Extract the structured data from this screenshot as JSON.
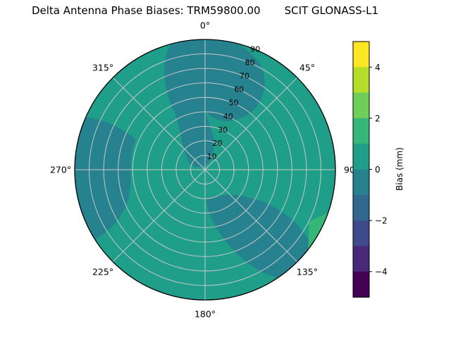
{
  "title": {
    "left": "Delta Antenna Phase Biases: TRM59800.00",
    "right": "SCIT GLONASS-L1"
  },
  "polar": {
    "azimuth_labels": [
      {
        "label": "0°",
        "angle": 0
      },
      {
        "label": "45°",
        "angle": 45
      },
      {
        "label": "90",
        "angle": 90
      },
      {
        "label": "135°",
        "angle": 135
      },
      {
        "label": "180°",
        "angle": 180
      },
      {
        "label": "225°",
        "angle": 225
      },
      {
        "label": "270°",
        "angle": 270
      },
      {
        "label": "315°",
        "angle": 315
      }
    ],
    "radial_labels": [
      "10",
      "20",
      "30",
      "40",
      "50",
      "60",
      "70",
      "80",
      "90"
    ],
    "radial_label_angle_deg": 22,
    "grid_color": "#c8c8c8"
  },
  "colors": {
    "base": "#1f9e89",
    "low": "#26828e",
    "high": "#35b779",
    "outline": "#000000"
  },
  "colorbar": {
    "title": "Bias (mm)",
    "vmin": -5,
    "vmax": 5,
    "ticks": [
      {
        "label": "4",
        "value": 4
      },
      {
        "label": "2",
        "value": 2
      },
      {
        "label": "0",
        "value": 0
      },
      {
        "label": "−2",
        "value": -2
      },
      {
        "label": "−4",
        "value": -4
      }
    ],
    "bands_top_to_bottom": [
      "#fde725",
      "#b5de2b",
      "#6ece58",
      "#35b779",
      "#1f9e89",
      "#26828e",
      "#31688e",
      "#3e4a89",
      "#482878",
      "#440154"
    ]
  },
  "chart_data": {
    "type": "heatmap",
    "projection": "polar",
    "title": "Delta Antenna Phase Biases: TRM59800.00     SCIT GLONASS-L1",
    "azimuth_ticks_deg": [
      0,
      45,
      90,
      135,
      180,
      225,
      270,
      315
    ],
    "radial_ticks": [
      10,
      20,
      30,
      40,
      50,
      60,
      70,
      80,
      90
    ],
    "radial_axis": "zenith angle in degrees, 0 at center to 90 at outer edge",
    "colorbar_label": "Bias (mm)",
    "colorbar_range": [
      -5,
      5
    ],
    "contour_level_step": 1,
    "value_range_observed": [
      -1,
      2
    ],
    "legend_position": "right colorbar",
    "grid": true,
    "regions": [
      {
        "value_band": "0 to 1 mm",
        "color": "#1f9e89",
        "description": "teal-green background covering most of the antenna dish"
      },
      {
        "value_band": "-1 to 0 mm",
        "color": "#26828e",
        "description": "darker swirl arms: large lobe from top edge (az ~335°–35°) curling down to center, band along left edge (az ~230°–300°), arm sweeping through lower-right (az ~120°–170°), small crescent at lower-left edge (az ~205°–240°)"
      },
      {
        "value_band": "1 to 2 mm",
        "color": "#35b779",
        "description": "thin bright-green sliver at the outer edge near azimuth 120°–145°"
      }
    ]
  }
}
